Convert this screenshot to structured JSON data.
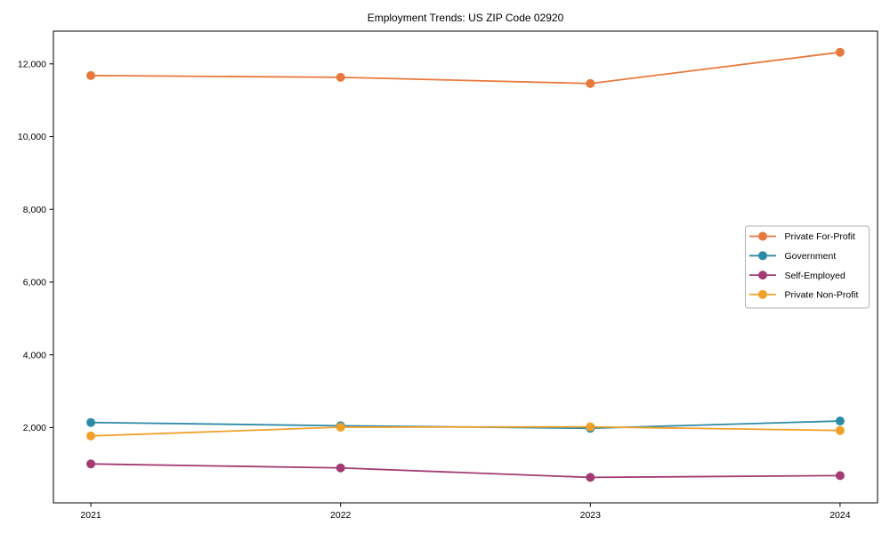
{
  "title": "Employment Trends: US ZIP Code 02920",
  "chart_data": {
    "type": "line",
    "title": "Employment Trends: US ZIP Code 02920",
    "xlabel": "",
    "ylabel": "",
    "x": [
      2021,
      2022,
      2023,
      2024
    ],
    "x_tick_labels": [
      "2021",
      "2022",
      "2023",
      "2024"
    ],
    "series": [
      {
        "name": "Private For-Profit",
        "color": "#E8793D",
        "values": [
          11680,
          11630,
          11460,
          12320
        ]
      },
      {
        "name": "Government",
        "color": "#2E8BA5",
        "values": [
          2140,
          2050,
          1980,
          2180
        ]
      },
      {
        "name": "Self-Employed",
        "color": "#A33B73",
        "values": [
          1000,
          890,
          630,
          680
        ]
      },
      {
        "name": "Private Non-Profit",
        "color": "#F0A028",
        "values": [
          1770,
          2010,
          2020,
          1920
        ]
      }
    ],
    "yticks": [
      2000,
      4000,
      6000,
      8000,
      10000,
      12000
    ],
    "ytick_labels": [
      "2,000",
      "4,000",
      "6,000",
      "8,000",
      "10,000",
      "12,000"
    ],
    "xlim": [
      2020.85,
      2024.15
    ],
    "ylim": [
      -70,
      12900
    ],
    "grid": false,
    "legend_position": "center-right",
    "frame_color": "#000000",
    "legend_border_color": "#b0b0b0",
    "background_color": "#ffffff"
  }
}
